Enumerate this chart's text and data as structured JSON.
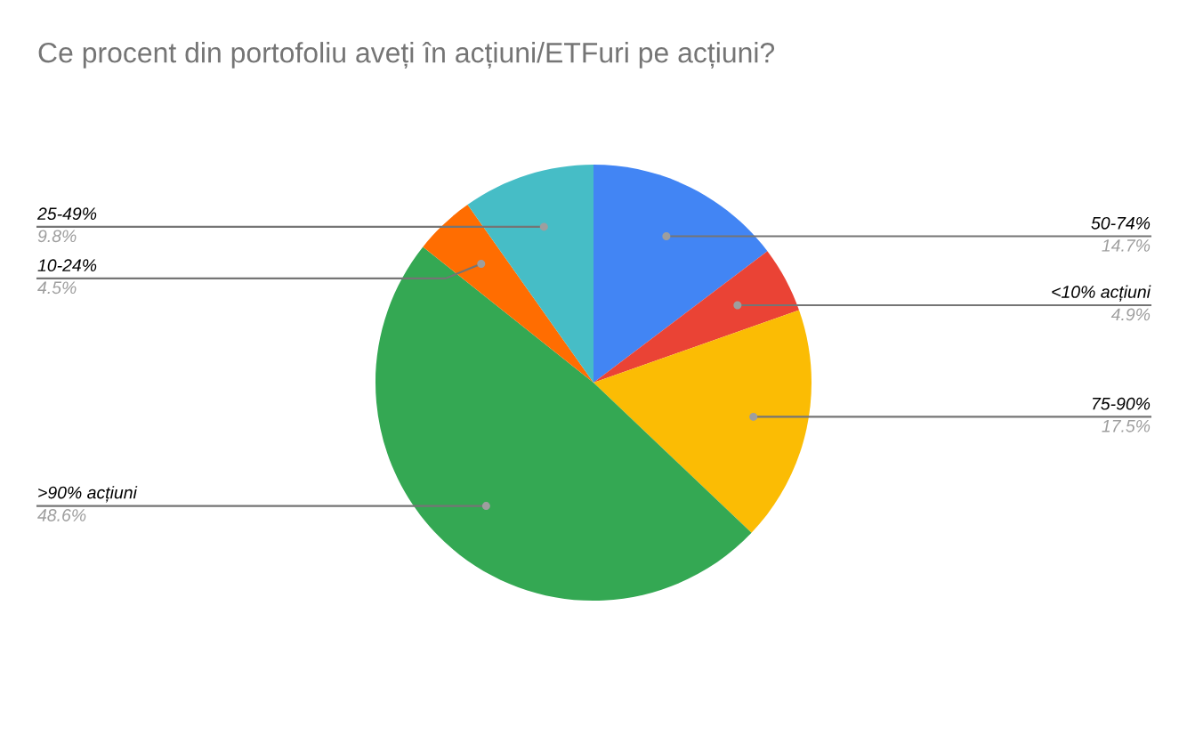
{
  "chart_data": {
    "type": "pie",
    "title": "Ce procent din portofoliu aveți în acțiuni/ETFuri pe acțiuni?",
    "categories": [
      "50-74%",
      "<10% acțiuni",
      "75-90%",
      ">90% acțiuni",
      "10-24%",
      "25-49%"
    ],
    "values": [
      14.7,
      4.9,
      17.5,
      48.6,
      4.5,
      9.8
    ],
    "colors": [
      "#4285f4",
      "#ea4335",
      "#fbbc04",
      "#34a853",
      "#ff6d01",
      "#46bdc6"
    ],
    "value_labels": [
      "14.7%",
      "4.9%",
      "17.5%",
      "48.6%",
      "4.5%",
      "9.8%"
    ]
  }
}
